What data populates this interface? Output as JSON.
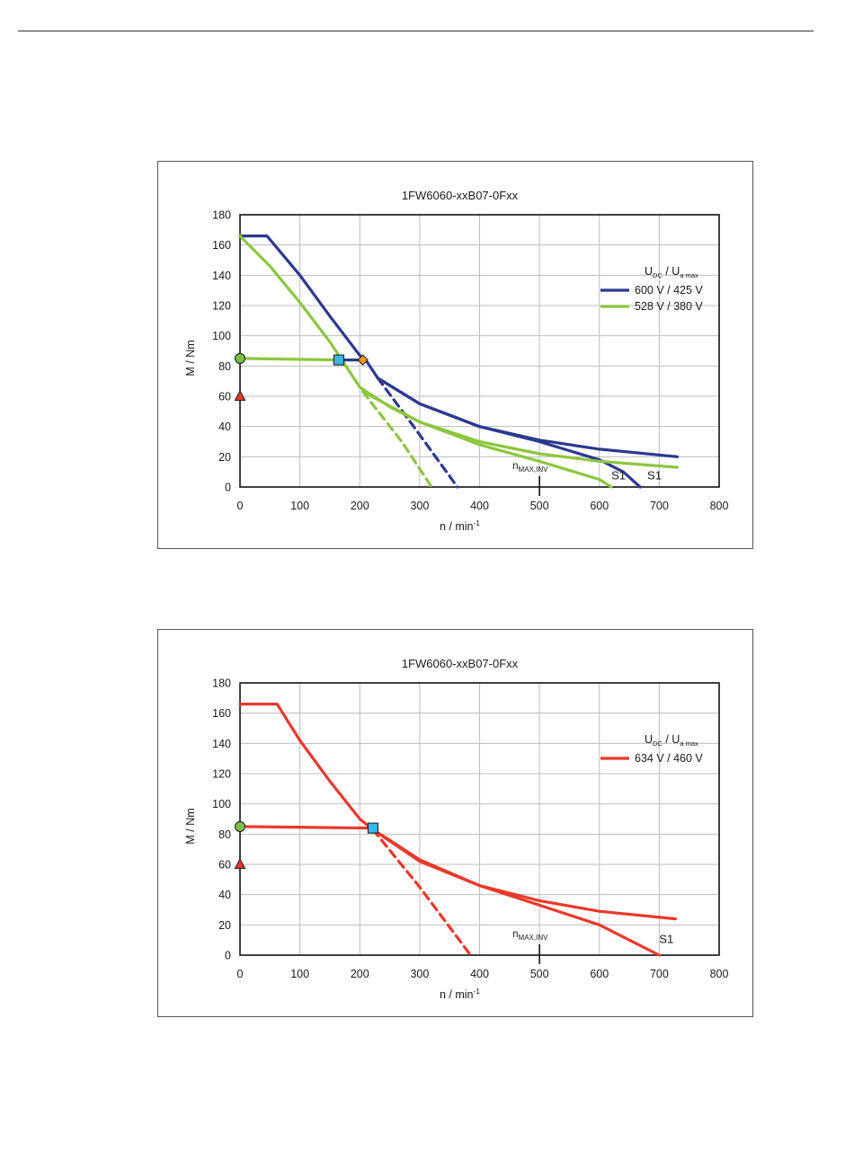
{
  "colors": {
    "navy": "#2b3990",
    "green": "#8dc63f",
    "red": "#e8392b",
    "grid": "#bdbdbd",
    "marker_green": "#7ac143",
    "marker_blue": "#3bb7e6",
    "marker_red": "#e8392b",
    "marker_orange": "#f7941d"
  },
  "chart_data": [
    {
      "type": "line",
      "title": "1FW6060-xxB07-0Fxx",
      "xlabel": "n / min",
      "xlabel_sup": "-1",
      "ylabel": "M / Nm",
      "xlim": [
        0,
        800
      ],
      "ylim": [
        0,
        180
      ],
      "xticks": [
        "0",
        "100",
        "200",
        "300",
        "400",
        "500",
        "600",
        "700",
        "800"
      ],
      "yticks": [
        "0",
        "20",
        "40",
        "60",
        "80",
        "100",
        "120",
        "140",
        "160",
        "180"
      ],
      "grid": true,
      "legend_position": "top-right",
      "legend_header": {
        "main1": "U",
        "sub1": "DC",
        "sep": " / ",
        "main2": "U",
        "sub2": "a max"
      },
      "series": [
        {
          "name": "600 V / 425 V",
          "color": "navy",
          "style": "solid",
          "x": [
            0,
            45,
            100,
            150,
            200,
            210,
            230,
            300,
            400,
            500,
            600,
            730
          ],
          "y": [
            166,
            166,
            140,
            113,
            87,
            84,
            72,
            55,
            40,
            31,
            25,
            20
          ]
        },
        {
          "color": "navy",
          "style": "dashed",
          "x": [
            230,
            290,
            363
          ],
          "y": [
            72,
            40,
            0
          ]
        },
        {
          "color": "navy",
          "style": "solid",
          "label": "S1",
          "x": [
            230,
            300,
            400,
            500,
            600,
            640,
            668
          ],
          "y": [
            72,
            55,
            40,
            30,
            18,
            10,
            0
          ]
        },
        {
          "name": "528 V / 380 V",
          "color": "green",
          "style": "solid",
          "x": [
            0,
            50,
            100,
            150,
            200,
            250,
            300,
            400,
            500,
            600,
            730
          ],
          "y": [
            166,
            146,
            122,
            96,
            66,
            53,
            43,
            30,
            22,
            17,
            13
          ]
        },
        {
          "color": "green",
          "style": "dashed",
          "x": [
            205,
            270,
            320
          ],
          "y": [
            63,
            30,
            0
          ]
        },
        {
          "color": "green",
          "style": "solid",
          "label": "S1",
          "x": [
            0,
            165
          ],
          "y": [
            85,
            84
          ]
        },
        {
          "color": "green",
          "style": "solid",
          "label": "S1",
          "x": [
            205,
            300,
            400,
            500,
            600,
            620
          ],
          "y": [
            63,
            43,
            28,
            17,
            5,
            0
          ]
        },
        {
          "color": "navy",
          "style": "solid",
          "x": [
            165,
            205
          ],
          "y": [
            84,
            84
          ]
        }
      ],
      "markers": [
        {
          "shape": "circle",
          "color": "marker_green",
          "x": 0,
          "y": 85
        },
        {
          "shape": "triangle",
          "color": "marker_red",
          "x": 0,
          "y": 60
        },
        {
          "shape": "square",
          "color": "marker_blue",
          "x": 165,
          "y": 84
        },
        {
          "shape": "diamond",
          "color": "marker_orange",
          "x": 205,
          "y": 84
        }
      ],
      "annotations": [
        {
          "text": "S1",
          "x": 620,
          "y": 5
        },
        {
          "text": "S1",
          "x": 680,
          "y": 5
        }
      ],
      "nmax": {
        "label_main": "n",
        "label_sub": "MAX,INV",
        "x": 500,
        "label_y": 12
      }
    },
    {
      "type": "line",
      "title": "1FW6060-xxB07-0Fxx",
      "xlabel": "n / min",
      "xlabel_sup": "-1",
      "ylabel": "M / Nm",
      "xlim": [
        0,
        800
      ],
      "ylim": [
        0,
        180
      ],
      "xticks": [
        "0",
        "100",
        "200",
        "300",
        "400",
        "500",
        "600",
        "700",
        "800"
      ],
      "yticks": [
        "0",
        "20",
        "40",
        "60",
        "80",
        "100",
        "120",
        "140",
        "160",
        "180"
      ],
      "grid": true,
      "legend_position": "top-right",
      "legend_header": {
        "main1": "U",
        "sub1": "DC",
        "sep": " / ",
        "main2": "U",
        "sub2": "a max"
      },
      "series": [
        {
          "name": "634 V / 460 V",
          "color": "red",
          "style": "solid",
          "x": [
            0,
            62,
            100,
            150,
            200,
            222,
            250,
            300,
            400,
            500,
            600,
            727
          ],
          "y": [
            166,
            166,
            142,
            115,
            90,
            83,
            76,
            63,
            46,
            36,
            29,
            24
          ]
        },
        {
          "color": "red",
          "style": "dashed",
          "x": [
            222,
            300,
            385
          ],
          "y": [
            83,
            45,
            0
          ]
        },
        {
          "color": "red",
          "style": "solid",
          "x": [
            222,
            300,
            400,
            500,
            600,
            650,
            700
          ],
          "y": [
            83,
            62,
            46,
            33,
            20,
            10,
            0
          ]
        },
        {
          "color": "red",
          "style": "solid",
          "x": [
            0,
            222
          ],
          "y": [
            85,
            84
          ]
        }
      ],
      "markers": [
        {
          "shape": "circle",
          "color": "marker_green",
          "x": 0,
          "y": 85
        },
        {
          "shape": "triangle",
          "color": "marker_red",
          "x": 0,
          "y": 60
        },
        {
          "shape": "square",
          "color": "marker_blue",
          "x": 222,
          "y": 84
        }
      ],
      "annotations": [
        {
          "text": "S1",
          "x": 700,
          "y": 8
        }
      ],
      "nmax": {
        "label_main": "n",
        "label_sub": "MAX,INV",
        "x": 500,
        "label_y": 12
      }
    }
  ]
}
